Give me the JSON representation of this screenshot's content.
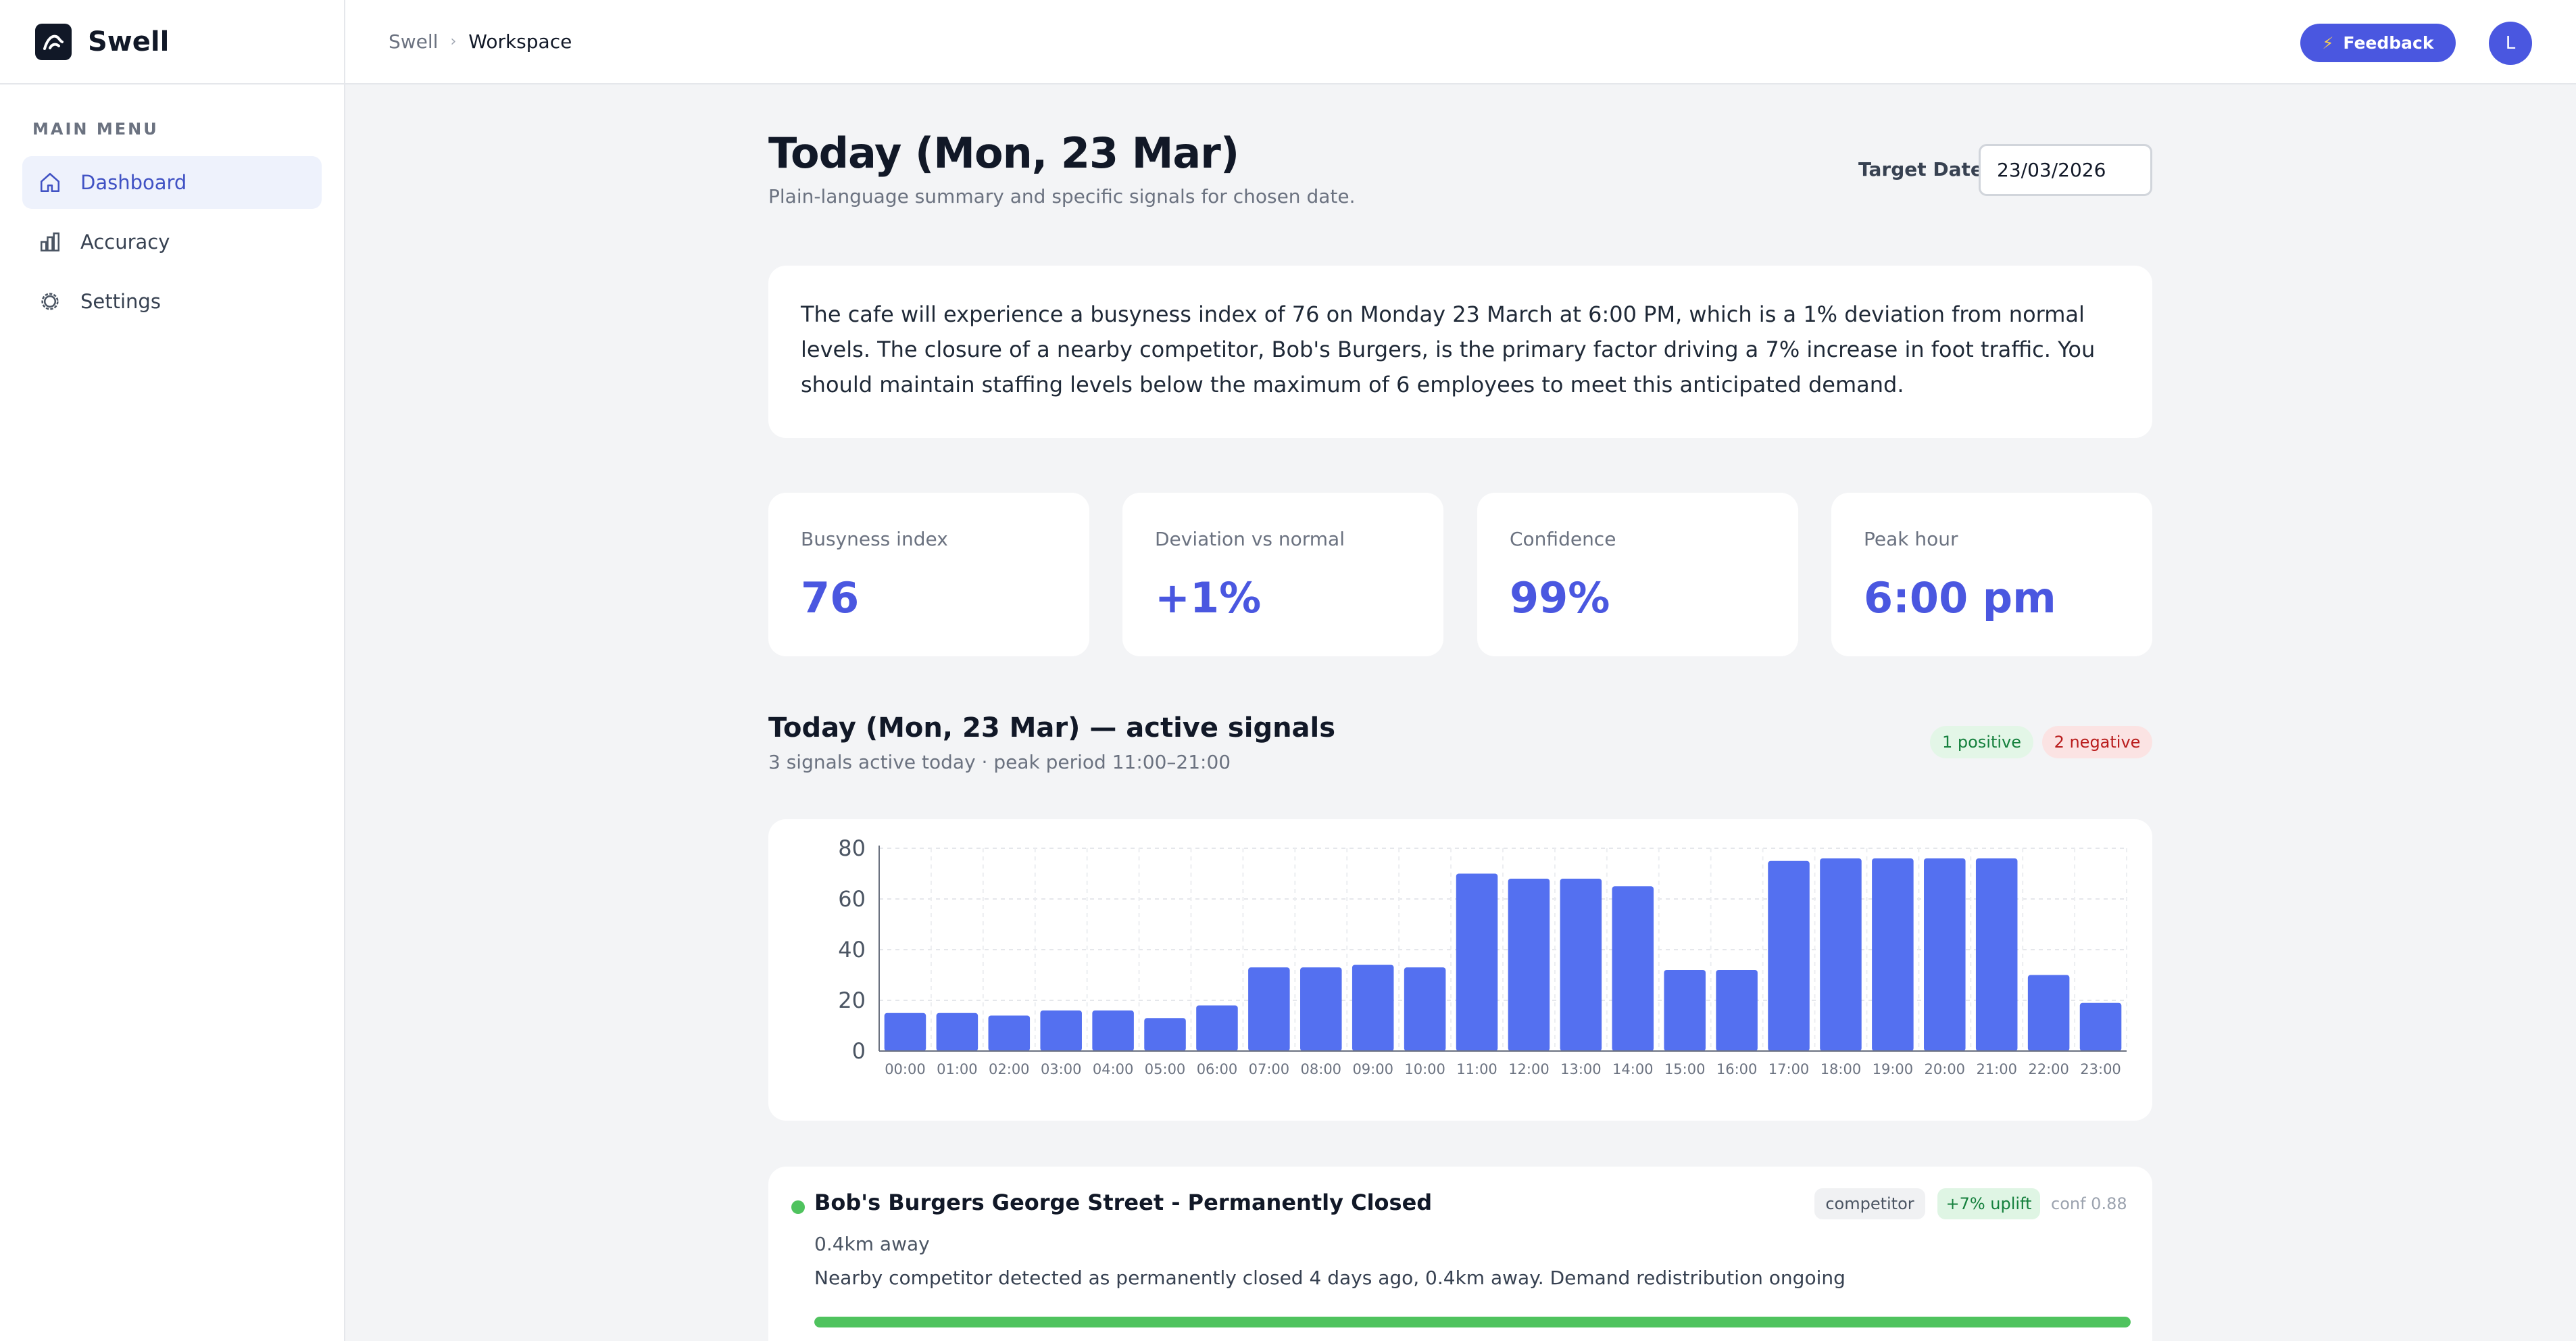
{
  "app": {
    "name": "Swell"
  },
  "sidebar": {
    "caption": "MAIN MENU",
    "items": [
      {
        "label": "Dashboard",
        "icon": "home-icon",
        "active": true
      },
      {
        "label": "Accuracy",
        "icon": "bar-chart-icon",
        "active": false
      },
      {
        "label": "Settings",
        "icon": "gear-icon",
        "active": false
      }
    ]
  },
  "header": {
    "breadcrumb": [
      "Swell",
      "Workspace"
    ],
    "feedback_label": "Feedback",
    "avatar_initial": "L"
  },
  "main": {
    "title": "Today (Mon, 23 Mar)",
    "subtitle": "Plain-language summary and specific signals for chosen date.",
    "target_date_label": "Target Date",
    "target_date_value": "23/03/2026",
    "summary": "The cafe will experience a busyness index of 76 on Monday 23 March at 6:00 PM, which is a 1% deviation from normal levels. The closure of a nearby competitor, Bob's Burgers, is the primary factor driving a 7% increase in foot traffic. You should maintain staffing levels below the maximum of 6 employees to meet this anticipated demand.",
    "stats": [
      {
        "label": "Busyness index",
        "value": "76"
      },
      {
        "label": "Deviation vs normal",
        "value": "+1%"
      },
      {
        "label": "Confidence",
        "value": "99%"
      },
      {
        "label": "Peak hour",
        "value": "6:00 pm"
      }
    ],
    "signals_title": "Today (Mon, 23 Mar) — active signals",
    "signals_subtitle": "3 signals active today · peak period 11:00–21:00",
    "positive_badge": "1 positive",
    "negative_badge": "2 negative"
  },
  "chart_data": {
    "type": "bar",
    "categories": [
      "00:00",
      "01:00",
      "02:00",
      "03:00",
      "04:00",
      "05:00",
      "06:00",
      "07:00",
      "08:00",
      "09:00",
      "10:00",
      "11:00",
      "12:00",
      "13:00",
      "14:00",
      "15:00",
      "16:00",
      "17:00",
      "18:00",
      "19:00",
      "20:00",
      "21:00",
      "22:00",
      "23:00"
    ],
    "values": [
      15,
      15,
      14,
      16,
      16,
      13,
      18,
      33,
      33,
      34,
      33,
      70,
      68,
      68,
      65,
      32,
      32,
      75,
      76,
      76,
      76,
      76,
      30,
      19
    ],
    "yticks": [
      0,
      20,
      40,
      60,
      80
    ],
    "ylim": [
      0,
      80
    ],
    "grid": true,
    "bar_color": "#5470f0"
  },
  "signal": {
    "title": "Bob's Burgers George Street - Permanently Closed",
    "distance": "0.4km away",
    "description": "Nearby competitor detected as permanently closed 4 days ago, 0.4km away. Demand redistribution ongoing",
    "category": "competitor",
    "uplift": "+7% uplift",
    "confidence": "conf 0.88",
    "strength": 1.0,
    "color": "#4fc35e"
  }
}
